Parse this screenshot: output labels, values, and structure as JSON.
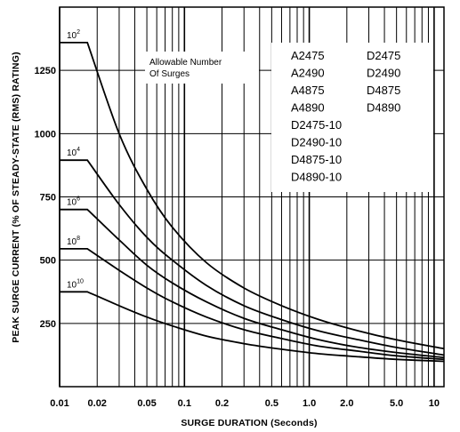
{
  "chart_data": {
    "type": "line",
    "xlabel": "SURGE DURATION (Seconds)",
    "ylabel": "PEAK SURGE CURRENT (% OF STEADY-STATE (RMS) RATING)",
    "xscale": "log",
    "xlim": [
      0.01,
      12
    ],
    "ylim": [
      0,
      1500
    ],
    "x_ticks": [
      {
        "value": 0.01,
        "label": "0.01"
      },
      {
        "value": 0.02,
        "label": "0.02"
      },
      {
        "value": 0.05,
        "label": "0.05"
      },
      {
        "value": 0.1,
        "label": "0.1"
      },
      {
        "value": 0.2,
        "label": "0.2"
      },
      {
        "value": 0.5,
        "label": "0.5"
      },
      {
        "value": 1.0,
        "label": "1.0"
      },
      {
        "value": 2.0,
        "label": "2.0"
      },
      {
        "value": 5.0,
        "label": "5.0"
      },
      {
        "value": 10,
        "label": "10"
      }
    ],
    "y_ticks": [
      {
        "value": 250,
        "label": "250"
      },
      {
        "value": 500,
        "label": "500"
      },
      {
        "value": 750,
        "label": "750"
      },
      {
        "value": 1000,
        "label": "1000"
      },
      {
        "value": 1250,
        "label": "1250"
      }
    ],
    "grid": true,
    "legend_title": "Allowable Number\nOf Surges",
    "models": [
      "A2475",
      "D2475",
      "A2490",
      "D2490",
      "A4875",
      "D4875",
      "A4890",
      "D4890",
      "D2475-10",
      "D2490-10",
      "D4875-10",
      "D4890-10"
    ],
    "series": [
      {
        "name": "10^2",
        "label_base": "10",
        "label_exp": "2",
        "x": [
          0.01,
          0.0167,
          0.03,
          0.05,
          0.08,
          0.15,
          0.3,
          0.6,
          1.2,
          2.5,
          5.0,
          12
        ],
        "y": [
          1360,
          1360,
          1000,
          780,
          630,
          490,
          390,
          320,
          265,
          220,
          185,
          150
        ]
      },
      {
        "name": "10^4",
        "label_base": "10",
        "label_exp": "4",
        "x": [
          0.01,
          0.0167,
          0.03,
          0.05,
          0.08,
          0.15,
          0.3,
          0.6,
          1.2,
          2.5,
          5.0,
          12
        ],
        "y": [
          895,
          895,
          720,
          590,
          500,
          400,
          320,
          265,
          220,
          185,
          155,
          125
        ]
      },
      {
        "name": "10^6",
        "label_base": "10",
        "label_exp": "6",
        "x": [
          0.01,
          0.0167,
          0.03,
          0.05,
          0.08,
          0.15,
          0.3,
          0.6,
          1.2,
          2.5,
          5.0,
          12
        ],
        "y": [
          700,
          700,
          580,
          480,
          410,
          335,
          270,
          225,
          185,
          155,
          135,
          115
        ]
      },
      {
        "name": "10^8",
        "label_base": "10",
        "label_exp": "8",
        "x": [
          0.01,
          0.0167,
          0.03,
          0.05,
          0.08,
          0.15,
          0.3,
          0.6,
          1.2,
          2.5,
          5.0,
          12
        ],
        "y": [
          545,
          545,
          460,
          390,
          335,
          275,
          225,
          190,
          160,
          140,
          122,
          108
        ]
      },
      {
        "name": "10^10",
        "label_base": "10",
        "label_exp": "10",
        "x": [
          0.01,
          0.0167,
          0.03,
          0.05,
          0.08,
          0.15,
          0.3,
          0.6,
          1.2,
          2.5,
          5.0,
          12
        ],
        "y": [
          375,
          375,
          320,
          275,
          240,
          200,
          170,
          148,
          130,
          118,
          108,
          100
        ]
      }
    ]
  }
}
